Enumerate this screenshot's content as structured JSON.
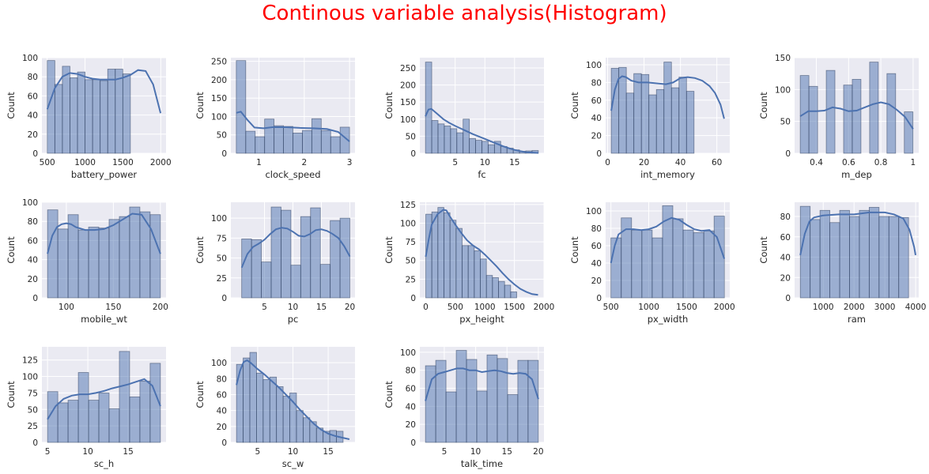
{
  "suptitle": "Continous variable analysis(Histogram)",
  "colors": {
    "bar_fill": "#4c72b0",
    "bar_edge": "#2f3f5f",
    "kde_line": "#4c72b0",
    "axes_bg": "#eaeaf2",
    "grid": "#ffffff",
    "title": "#ff0000"
  },
  "chart_data": [
    {
      "type": "bar",
      "xlabel": "battery_power",
      "ylabel": "Count",
      "xlim": [
        430,
        2070
      ],
      "ylim": [
        0,
        100
      ],
      "xticks": [
        500,
        1000,
        1500,
        2000
      ],
      "yticks": [
        0,
        20,
        40,
        60,
        80,
        100
      ],
      "bins": {
        "start": 501,
        "width": 99.8
      },
      "values": [
        97,
        72,
        91,
        79,
        85,
        77,
        77,
        76,
        88,
        88,
        83
      ],
      "kde": [
        [
          501,
          46
        ],
        [
          600,
          68
        ],
        [
          700,
          80
        ],
        [
          800,
          84
        ],
        [
          900,
          83
        ],
        [
          1000,
          80
        ],
        [
          1100,
          78
        ],
        [
          1200,
          77
        ],
        [
          1300,
          77
        ],
        [
          1400,
          77
        ],
        [
          1500,
          79
        ],
        [
          1600,
          82
        ],
        [
          1700,
          87
        ],
        [
          1800,
          86
        ],
        [
          1900,
          72
        ],
        [
          1998,
          42
        ]
      ]
    },
    {
      "type": "bar",
      "xlabel": "clock_speed",
      "ylabel": "Count",
      "xlim": [
        0.38,
        3.12
      ],
      "ylim": [
        0,
        260
      ],
      "xticks": [
        1,
        2,
        3
      ],
      "yticks": [
        0,
        50,
        100,
        150,
        200,
        250
      ],
      "bins": {
        "start": 0.5,
        "width": 0.2083
      },
      "values": [
        252,
        60,
        45,
        93,
        75,
        73,
        55,
        62,
        94,
        62,
        45,
        71
      ],
      "kde": [
        [
          0.5,
          110
        ],
        [
          0.6,
          113
        ],
        [
          0.75,
          90
        ],
        [
          0.9,
          70
        ],
        [
          1.1,
          68
        ],
        [
          1.3,
          71
        ],
        [
          1.6,
          71
        ],
        [
          1.9,
          69
        ],
        [
          2.2,
          68
        ],
        [
          2.5,
          66
        ],
        [
          2.75,
          58
        ],
        [
          3.0,
          32
        ]
      ]
    },
    {
      "type": "bar",
      "xlabel": "fc",
      "ylabel": "Count",
      "xlim": [
        -0.95,
        19.95
      ],
      "ylim": [
        0,
        280
      ],
      "xticks": [
        5,
        10,
        15
      ],
      "yticks": [
        0,
        50,
        100,
        150,
        200,
        250
      ],
      "bins": {
        "start": 0,
        "width": 1.0556
      },
      "values": [
        267,
        96,
        86,
        80,
        72,
        60,
        100,
        43,
        38,
        35,
        25,
        35,
        20,
        15,
        10,
        6,
        7,
        8
      ],
      "kde": [
        [
          0,
          108
        ],
        [
          0.5,
          128
        ],
        [
          1,
          130
        ],
        [
          2,
          115
        ],
        [
          3,
          100
        ],
        [
          4,
          89
        ],
        [
          5,
          80
        ],
        [
          6,
          72
        ],
        [
          7,
          64
        ],
        [
          8,
          56
        ],
        [
          9,
          49
        ],
        [
          10,
          42
        ],
        [
          11,
          35
        ],
        [
          12,
          28
        ],
        [
          13,
          21
        ],
        [
          14,
          15
        ],
        [
          15,
          10
        ],
        [
          16,
          6
        ],
        [
          17,
          3
        ],
        [
          18,
          2
        ],
        [
          19,
          1
        ]
      ]
    },
    {
      "type": "bar",
      "xlabel": "int_memory",
      "ylabel": "Count",
      "xlim": [
        -1.1,
        67.1
      ],
      "ylim": [
        0,
        108
      ],
      "xticks": [
        0,
        20,
        40,
        60
      ],
      "yticks": [
        0,
        20,
        40,
        60,
        80,
        100
      ],
      "bins": {
        "start": 2,
        "width": 4.1333
      },
      "values": [
        96,
        97,
        68,
        90,
        89,
        66,
        72,
        103,
        74,
        86,
        70
      ],
      "kde": [
        [
          2,
          48
        ],
        [
          4,
          72
        ],
        [
          6,
          84
        ],
        [
          8,
          87
        ],
        [
          10,
          86
        ],
        [
          13,
          82
        ],
        [
          17,
          80
        ],
        [
          22,
          80
        ],
        [
          27,
          79
        ],
        [
          32,
          78
        ],
        [
          36,
          80
        ],
        [
          40,
          85
        ],
        [
          44,
          86
        ],
        [
          48,
          85
        ],
        [
          52,
          82
        ],
        [
          56,
          76
        ],
        [
          59,
          68
        ],
        [
          62,
          55
        ],
        [
          64,
          39
        ]
      ]
    },
    {
      "type": "bar",
      "xlabel": "m_dep",
      "ylabel": "Count",
      "xlim": [
        0.265,
        1.035
      ],
      "ylim": [
        0,
        150
      ],
      "xticks": [
        0.4,
        0.6,
        0.8,
        1.0
      ],
      "yticks": [
        0,
        50,
        100,
        150
      ],
      "bins": {
        "start": 0.3,
        "width": 0.0538
      },
      "values": [
        122,
        105,
        0,
        130,
        0,
        107,
        116,
        0,
        143,
        0,
        125,
        0,
        65
      ],
      "kde": [
        [
          0.3,
          58
        ],
        [
          0.35,
          66
        ],
        [
          0.4,
          66
        ],
        [
          0.45,
          67
        ],
        [
          0.5,
          72
        ],
        [
          0.55,
          70
        ],
        [
          0.6,
          66
        ],
        [
          0.65,
          67
        ],
        [
          0.7,
          72
        ],
        [
          0.75,
          77
        ],
        [
          0.8,
          80
        ],
        [
          0.85,
          77
        ],
        [
          0.9,
          68
        ],
        [
          0.95,
          57
        ],
        [
          1.0,
          38
        ]
      ]
    },
    {
      "type": "bar",
      "xlabel": "mobile_wt",
      "ylabel": "Count",
      "xlim": [
        74,
        206
      ],
      "ylim": [
        0,
        100
      ],
      "xticks": [
        100,
        150,
        200
      ],
      "yticks": [
        0,
        20,
        40,
        60,
        80,
        100
      ],
      "bins": {
        "start": 80,
        "width": 10.9091
      },
      "values": [
        92,
        72,
        87,
        71,
        74,
        73,
        82,
        85,
        95,
        90,
        87
      ],
      "kde": [
        [
          80,
          46
        ],
        [
          85,
          65
        ],
        [
          90,
          74
        ],
        [
          95,
          77
        ],
        [
          100,
          78
        ],
        [
          105,
          77
        ],
        [
          110,
          74
        ],
        [
          120,
          71
        ],
        [
          130,
          71
        ],
        [
          140,
          72
        ],
        [
          150,
          76
        ],
        [
          160,
          82
        ],
        [
          170,
          88
        ],
        [
          180,
          87
        ],
        [
          190,
          72
        ],
        [
          200,
          46
        ]
      ]
    },
    {
      "type": "bar",
      "xlabel": "pc",
      "ylabel": "Count",
      "xlim": [
        -0.9,
        20.9
      ],
      "ylim": [
        0,
        120
      ],
      "xticks": [
        5,
        10,
        15,
        20
      ],
      "yticks": [
        0,
        25,
        50,
        75,
        100
      ],
      "bins": {
        "start": 1,
        "width": 1.7273
      },
      "values": [
        74,
        73,
        45,
        114,
        110,
        41,
        102,
        113,
        42,
        97,
        100
      ],
      "kde": [
        [
          1,
          38
        ],
        [
          2,
          55
        ],
        [
          3,
          64
        ],
        [
          4,
          68
        ],
        [
          5,
          73
        ],
        [
          6,
          80
        ],
        [
          7,
          86
        ],
        [
          8,
          88
        ],
        [
          9,
          87
        ],
        [
          10,
          83
        ],
        [
          11,
          78
        ],
        [
          12,
          77
        ],
        [
          13,
          80
        ],
        [
          14,
          85
        ],
        [
          15,
          86
        ],
        [
          16,
          84
        ],
        [
          17,
          80
        ],
        [
          18,
          75
        ],
        [
          19,
          65
        ],
        [
          20,
          52
        ]
      ]
    },
    {
      "type": "bar",
      "xlabel": "px_height",
      "ylabel": "Count",
      "xlim": [
        -100,
        2000
      ],
      "ylim": [
        0,
        128
      ],
      "xticks": [
        0,
        500,
        1000,
        1500,
        2000
      ],
      "yticks": [
        0,
        25,
        50,
        75,
        100,
        125
      ],
      "bins": {
        "start": 0,
        "width": 102.6
      },
      "values": [
        112,
        115,
        121,
        114,
        104,
        93,
        70,
        70,
        63,
        52,
        30,
        27,
        22,
        17,
        8
      ],
      "kde": [
        [
          0,
          55
        ],
        [
          50,
          78
        ],
        [
          100,
          98
        ],
        [
          200,
          112
        ],
        [
          300,
          118
        ],
        [
          350,
          117
        ],
        [
          400,
          110
        ],
        [
          500,
          98
        ],
        [
          600,
          87
        ],
        [
          700,
          77
        ],
        [
          800,
          70
        ],
        [
          900,
          65
        ],
        [
          1000,
          58
        ],
        [
          1100,
          50
        ],
        [
          1200,
          42
        ],
        [
          1300,
          33
        ],
        [
          1400,
          25
        ],
        [
          1500,
          18
        ],
        [
          1600,
          12
        ],
        [
          1700,
          8
        ],
        [
          1800,
          5
        ],
        [
          1900,
          4
        ]
      ]
    },
    {
      "type": "bar",
      "xlabel": "px_width",
      "ylabel": "Count",
      "xlim": [
        430,
        2070
      ],
      "ylim": [
        0,
        110
      ],
      "xticks": [
        500,
        1000,
        1500,
        2000
      ],
      "yticks": [
        0,
        20,
        40,
        60,
        80,
        100
      ],
      "bins": {
        "start": 500,
        "width": 136.3
      },
      "values": [
        69,
        92,
        78,
        78,
        69,
        106,
        91,
        78,
        75,
        77,
        94
      ],
      "kde": [
        [
          500,
          40
        ],
        [
          550,
          60
        ],
        [
          600,
          73
        ],
        [
          700,
          79
        ],
        [
          800,
          79
        ],
        [
          900,
          78
        ],
        [
          1000,
          79
        ],
        [
          1100,
          82
        ],
        [
          1200,
          88
        ],
        [
          1300,
          92
        ],
        [
          1400,
          90
        ],
        [
          1500,
          84
        ],
        [
          1600,
          79
        ],
        [
          1700,
          77
        ],
        [
          1800,
          78
        ],
        [
          1900,
          70
        ],
        [
          1998,
          45
        ]
      ]
    },
    {
      "type": "bar",
      "xlabel": "ram",
      "ylabel": "Count",
      "xlim": [
        70,
        4100
      ],
      "ylim": [
        0,
        94
      ],
      "xticks": [
        1000,
        2000,
        3000,
        4000
      ],
      "yticks": [
        0,
        20,
        40,
        60,
        80
      ],
      "bins": {
        "start": 256,
        "width": 319.5
      },
      "values": [
        90,
        77,
        86,
        74,
        86,
        80,
        86,
        89,
        80,
        80,
        79,
        0
      ],
      "kde": [
        [
          256,
          42
        ],
        [
          400,
          63
        ],
        [
          550,
          75
        ],
        [
          700,
          79
        ],
        [
          1000,
          81
        ],
        [
          1500,
          82
        ],
        [
          2000,
          82
        ],
        [
          2500,
          84
        ],
        [
          3000,
          84
        ],
        [
          3300,
          82
        ],
        [
          3600,
          78
        ],
        [
          3800,
          67
        ],
        [
          3950,
          50
        ],
        [
          3998,
          42
        ]
      ]
    },
    {
      "type": "bar",
      "xlabel": "sc_h",
      "ylabel": "Count",
      "xlim": [
        4.3,
        19.7
      ],
      "ylim": [
        0,
        145
      ],
      "xticks": [
        5,
        10,
        15
      ],
      "yticks": [
        0,
        25,
        50,
        75,
        100,
        125
      ],
      "bins": {
        "start": 5,
        "width": 1.2727
      },
      "values": [
        77,
        60,
        64,
        106,
        64,
        75,
        51,
        138,
        69,
        93,
        120
      ],
      "kde": [
        [
          5,
          35
        ],
        [
          6,
          55
        ],
        [
          7,
          66
        ],
        [
          8,
          71
        ],
        [
          9,
          73
        ],
        [
          10,
          73
        ],
        [
          11,
          75
        ],
        [
          12,
          78
        ],
        [
          13,
          82
        ],
        [
          14,
          85
        ],
        [
          15,
          88
        ],
        [
          16,
          92
        ],
        [
          17,
          96
        ],
        [
          18,
          86
        ],
        [
          19,
          55
        ]
      ]
    },
    {
      "type": "bar",
      "xlabel": "sc_w",
      "ylabel": "Count",
      "xlim": [
        1.2,
        18.8
      ],
      "ylim": [
        0,
        120
      ],
      "xticks": [
        5,
        10,
        15
      ],
      "yticks": [
        0,
        20,
        40,
        60,
        80,
        100
      ],
      "bins": {
        "start": 2,
        "width": 0.9444
      },
      "values": [
        98,
        106,
        113,
        87,
        79,
        82,
        70,
        58,
        62,
        40,
        31,
        26,
        18,
        14,
        15,
        14
      ],
      "kde": [
        [
          2,
          72
        ],
        [
          2.5,
          90
        ],
        [
          3,
          101
        ],
        [
          3.5,
          103
        ],
        [
          4,
          100
        ],
        [
          5,
          92
        ],
        [
          6,
          85
        ],
        [
          7,
          77
        ],
        [
          8,
          69
        ],
        [
          9,
          60
        ],
        [
          10,
          51
        ],
        [
          11,
          41
        ],
        [
          12,
          32
        ],
        [
          13,
          23
        ],
        [
          14,
          16
        ],
        [
          15,
          11
        ],
        [
          16,
          8
        ],
        [
          17,
          6
        ],
        [
          18,
          4
        ]
      ]
    },
    {
      "type": "bar",
      "xlabel": "talk_time",
      "ylabel": "Count",
      "xlim": [
        1.1,
        20.9
      ],
      "ylim": [
        0,
        106
      ],
      "xticks": [
        5,
        10,
        15,
        20
      ],
      "yticks": [
        0,
        20,
        40,
        60,
        80,
        100
      ],
      "bins": {
        "start": 2,
        "width": 1.6364
      },
      "values": [
        85,
        91,
        56,
        102,
        92,
        57,
        97,
        93,
        53,
        91,
        91
      ],
      "kde": [
        [
          2,
          46
        ],
        [
          3,
          70
        ],
        [
          4,
          76
        ],
        [
          5,
          78
        ],
        [
          6,
          80
        ],
        [
          7,
          82
        ],
        [
          8,
          82
        ],
        [
          9,
          80
        ],
        [
          10,
          80
        ],
        [
          11,
          78
        ],
        [
          12,
          79
        ],
        [
          13,
          80
        ],
        [
          14,
          79
        ],
        [
          15,
          77
        ],
        [
          16,
          76
        ],
        [
          17,
          77
        ],
        [
          18,
          76
        ],
        [
          19,
          70
        ],
        [
          20,
          48
        ]
      ]
    }
  ]
}
